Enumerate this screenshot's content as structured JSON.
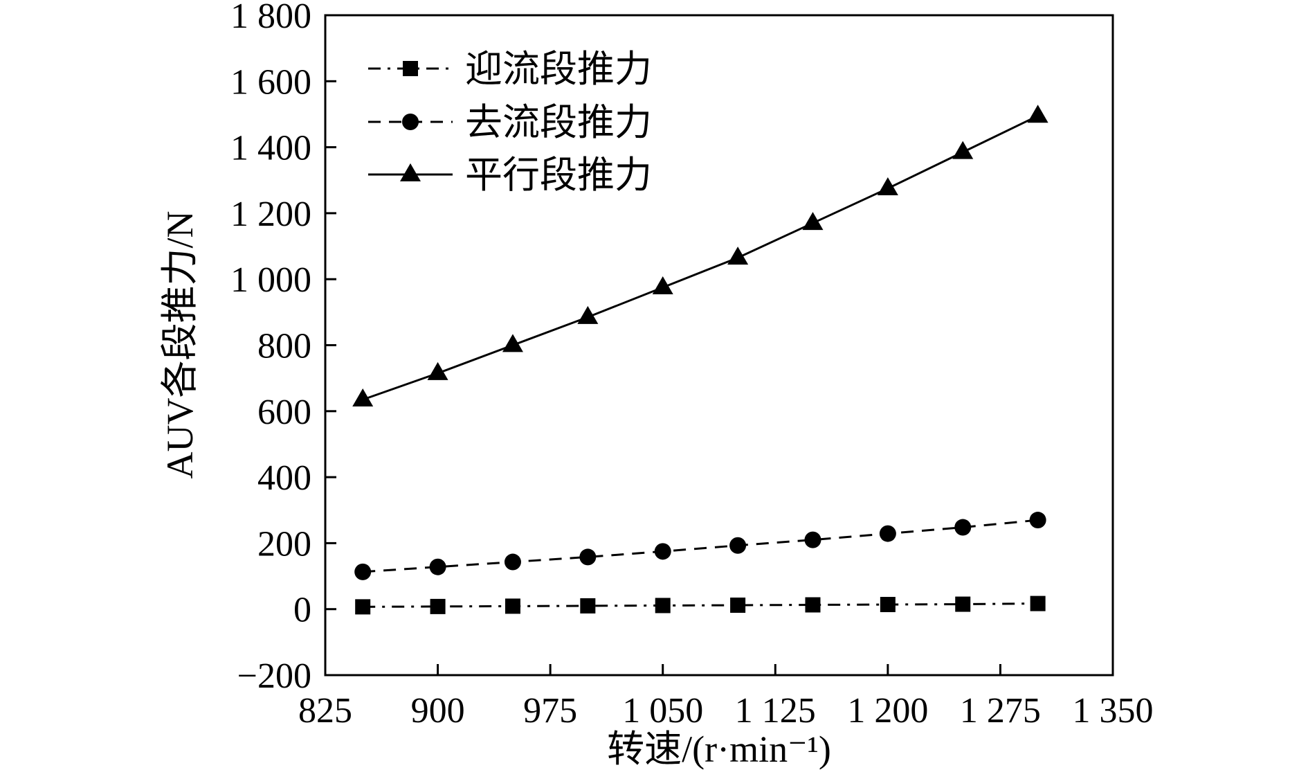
{
  "chart_data": {
    "type": "line",
    "xlabel": "转速/(r·min⁻¹)",
    "ylabel": "AUV各段推力/N",
    "xlim": [
      825,
      1350
    ],
    "ylim": [
      -200,
      1800
    ],
    "x_ticks": [
      825,
      900,
      975,
      1050,
      1125,
      1200,
      1275,
      1350
    ],
    "x_tick_labels": [
      "825",
      "900",
      "975",
      "1 050",
      "1 125",
      "1 200",
      "1 275",
      "1 350"
    ],
    "y_ticks": [
      -200,
      0,
      200,
      400,
      600,
      800,
      1000,
      1200,
      1400,
      1600,
      1800
    ],
    "y_tick_labels": [
      "−200",
      "0",
      "200",
      "400",
      "600",
      "800",
      "1 000",
      "1 200",
      "1 400",
      "1 600",
      "1 800"
    ],
    "grid": false,
    "legend_position": "top-left",
    "x": [
      850,
      900,
      950,
      1000,
      1050,
      1100,
      1150,
      1200,
      1250,
      1300
    ],
    "series": [
      {
        "name": "迎流段推力",
        "marker": "square",
        "line_style": "dash-dot",
        "values": [
          7,
          8,
          9,
          10,
          11,
          12,
          13,
          14,
          15,
          17
        ]
      },
      {
        "name": "去流段推力",
        "marker": "circle",
        "line_style": "dashed",
        "values": [
          113,
          128,
          143,
          158,
          175,
          193,
          210,
          229,
          248,
          270
        ]
      },
      {
        "name": "平行段推力",
        "marker": "triangle",
        "line_style": "solid",
        "values": [
          635,
          715,
          800,
          885,
          975,
          1065,
          1170,
          1275,
          1385,
          1495
        ]
      }
    ]
  }
}
